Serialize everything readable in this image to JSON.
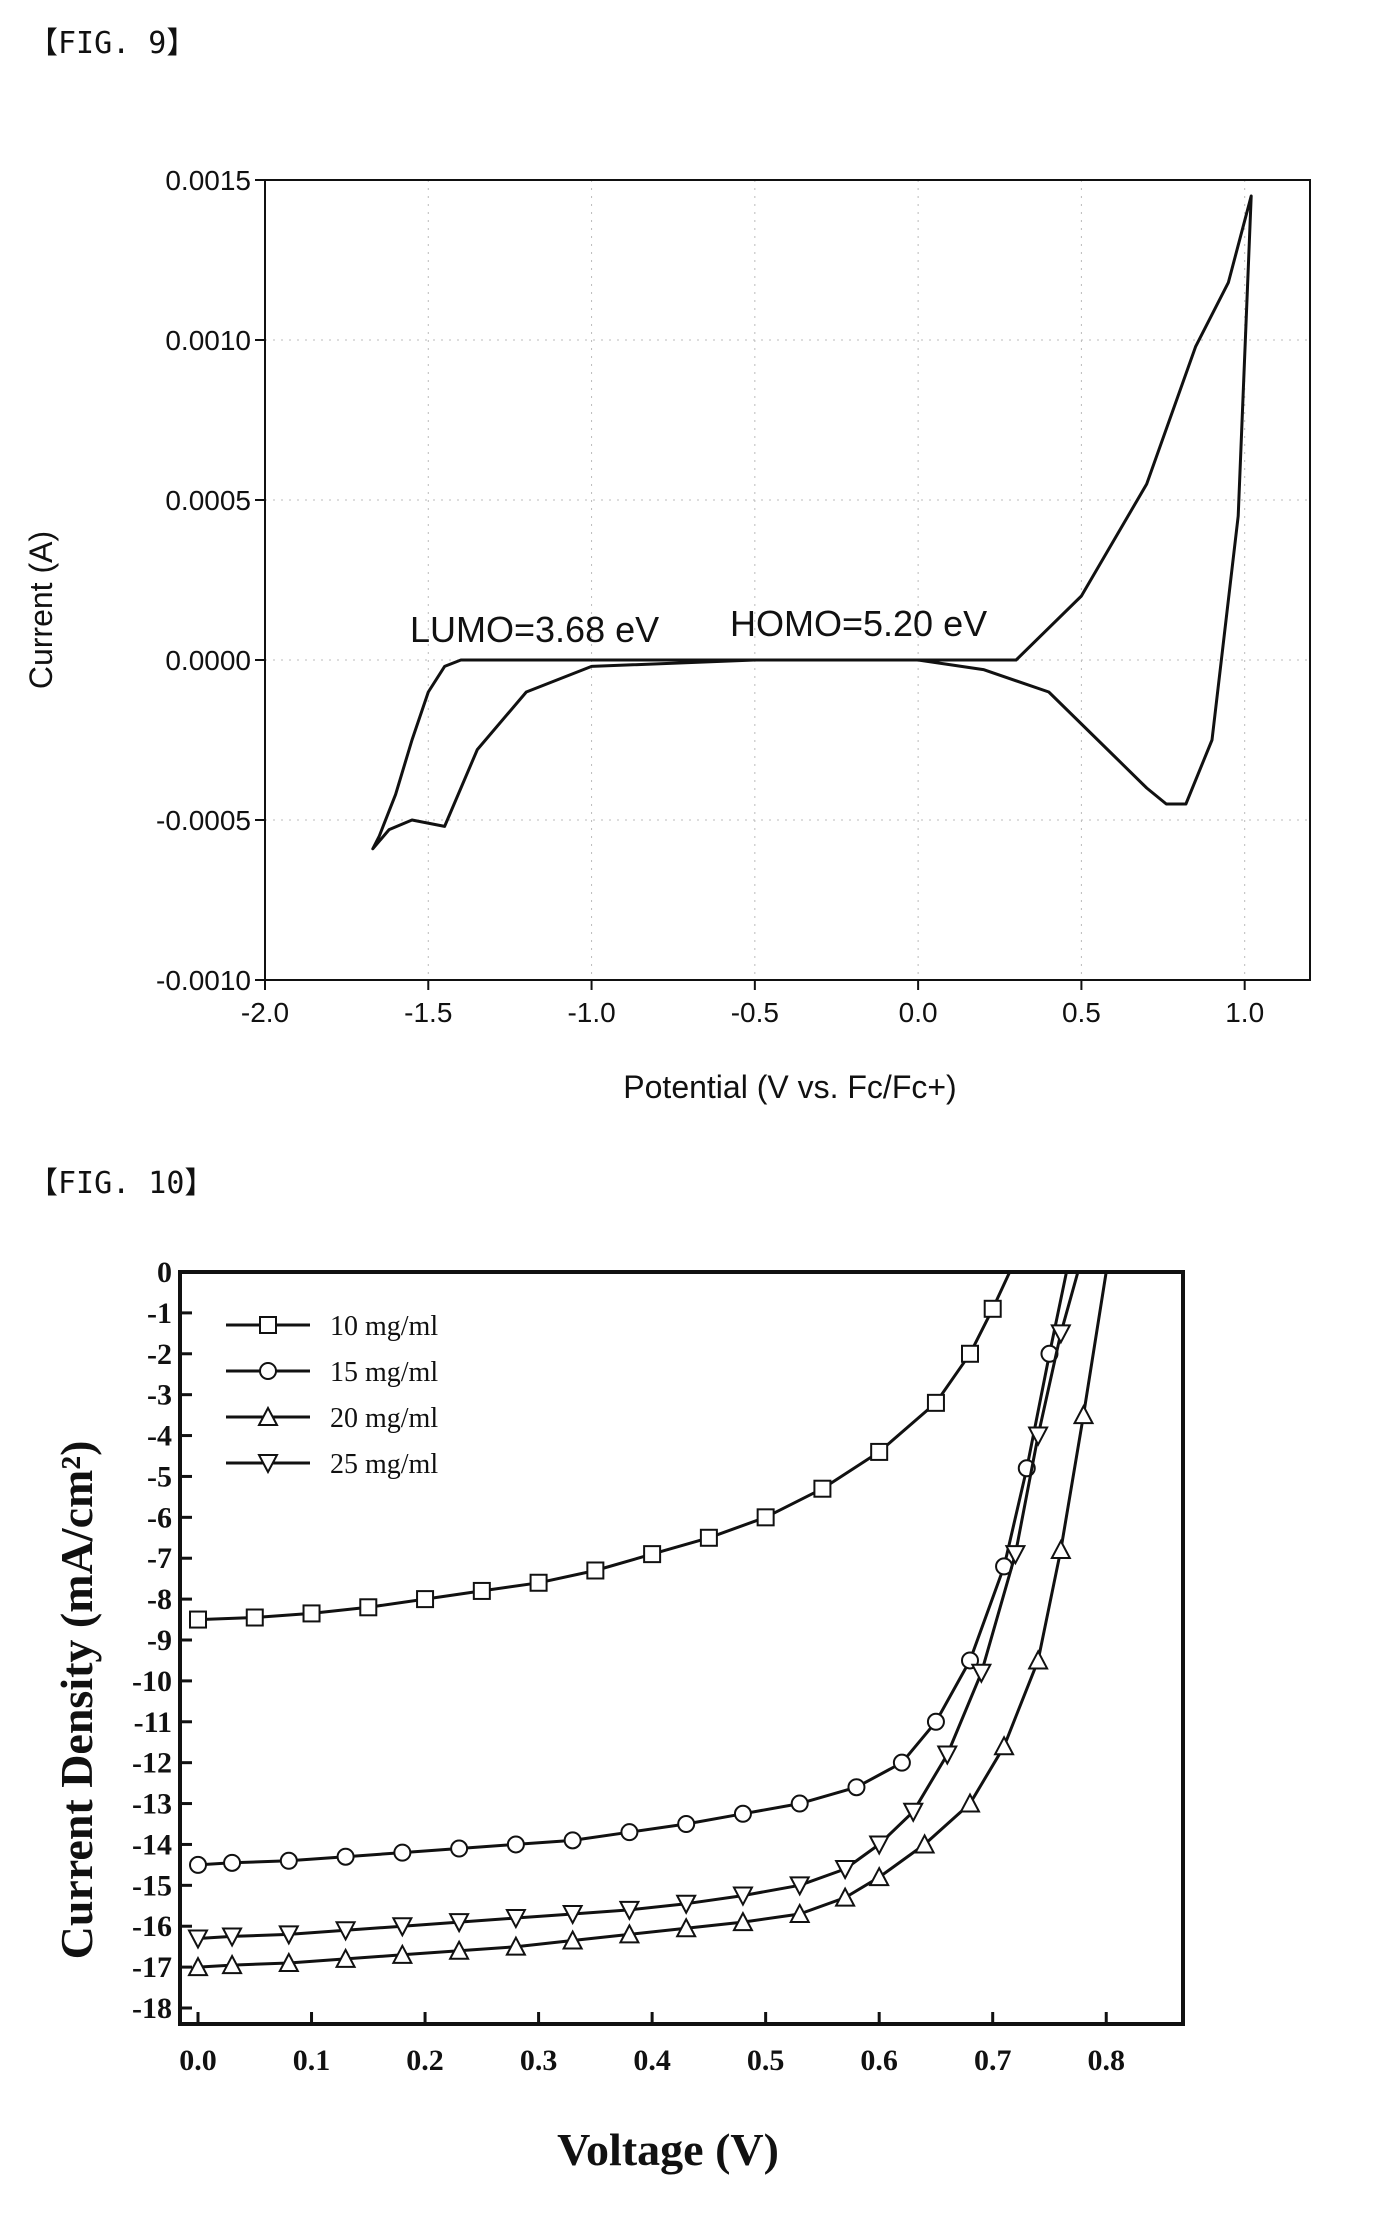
{
  "figures": {
    "fig9_label": "【FIG. 9】",
    "fig10_label": "【FIG. 10】"
  },
  "chart_data": [
    {
      "type": "line",
      "xlabel": "Potential (V vs. Fc/Fc+)",
      "ylabel": "Current (A)",
      "xlim": [
        -2.0,
        1.2
      ],
      "ylim": [
        -0.001,
        0.0015
      ],
      "xticks": [
        "-2.0",
        "-1.5",
        "-1.0",
        "-0.5",
        "0.0",
        "0.5",
        "1.0"
      ],
      "xtick_values": [
        -2.0,
        -1.5,
        -1.0,
        -0.5,
        0.0,
        0.5,
        1.0
      ],
      "yticks": [
        "0.0015",
        "0.0010",
        "0.0005",
        "0.0000",
        "-0.0005",
        "-0.0010"
      ],
      "ytick_values": [
        0.0015,
        0.001,
        0.0005,
        0.0,
        -0.0005,
        -0.001
      ],
      "grid": true,
      "annotations": [
        "LUMO=3.68 eV",
        "HOMO=5.20 eV"
      ],
      "series": [
        {
          "x": [
            -1.05,
            -1.2,
            -1.3,
            -1.4,
            -1.45,
            -1.5,
            -1.55,
            -1.6,
            -1.65,
            -1.67,
            -1.62,
            -1.55,
            -1.45,
            -1.35,
            -1.2,
            -1.0,
            -0.5,
            0.0,
            0.3,
            0.5,
            0.7,
            0.85,
            0.95,
            1.02,
            0.98,
            0.9,
            0.82,
            0.76,
            0.7,
            0.6,
            0.4,
            0.2,
            0.0,
            -0.5,
            -1.05
          ],
          "y": [
            0.0,
            0.0,
            0.0,
            0.0,
            -2e-05,
            -0.0001,
            -0.00025,
            -0.00042,
            -0.00055,
            -0.00059,
            -0.00053,
            -0.0005,
            -0.00052,
            -0.00028,
            -0.0001,
            -2e-05,
            0.0,
            0.0,
            0.0,
            0.0002,
            0.00055,
            0.00098,
            0.00118,
            0.00145,
            0.00045,
            -0.00025,
            -0.00045,
            -0.00045,
            -0.0004,
            -0.0003,
            -0.0001,
            -3e-05,
            0.0,
            0.0,
            0.0
          ]
        }
      ]
    },
    {
      "type": "line",
      "xlabel": "Voltage (V)",
      "ylabel": "Current Density (mA/cm²)",
      "xlim": [
        0.0,
        0.85
      ],
      "ylim": [
        -18,
        0
      ],
      "xticks": [
        "0.0",
        "0.1",
        "0.2",
        "0.3",
        "0.4",
        "0.5",
        "0.6",
        "0.7",
        "0.8"
      ],
      "xtick_values": [
        0.0,
        0.1,
        0.2,
        0.3,
        0.4,
        0.5,
        0.6,
        0.7,
        0.8
      ],
      "yticks": [
        "0",
        "-1",
        "-2",
        "-3",
        "-4",
        "-5",
        "-6",
        "-7",
        "-8",
        "-9",
        "-10",
        "-11",
        "-12",
        "-13",
        "-14",
        "-15",
        "-16",
        "-17",
        "-18"
      ],
      "ytick_values": [
        0,
        -1,
        -2,
        -3,
        -4,
        -5,
        -6,
        -7,
        -8,
        -9,
        -10,
        -11,
        -12,
        -13,
        -14,
        -15,
        -16,
        -17,
        -18
      ],
      "legend": "top-left",
      "series": [
        {
          "name": "10 mg/ml",
          "marker": "square",
          "x": [
            0.0,
            0.05,
            0.1,
            0.15,
            0.2,
            0.25,
            0.3,
            0.35,
            0.4,
            0.45,
            0.5,
            0.55,
            0.6,
            0.65,
            0.68,
            0.7,
            0.715
          ],
          "y": [
            -8.5,
            -8.45,
            -8.35,
            -8.2,
            -8.0,
            -7.8,
            -7.6,
            -7.3,
            -6.9,
            -6.5,
            -6.0,
            -5.3,
            -4.4,
            -3.2,
            -2.0,
            -0.9,
            0.0
          ]
        },
        {
          "name": "15 mg/ml",
          "marker": "circle",
          "x": [
            0.0,
            0.03,
            0.08,
            0.13,
            0.18,
            0.23,
            0.28,
            0.33,
            0.38,
            0.43,
            0.48,
            0.53,
            0.58,
            0.62,
            0.65,
            0.68,
            0.71,
            0.73,
            0.75,
            0.765
          ],
          "y": [
            -14.5,
            -14.45,
            -14.4,
            -14.3,
            -14.2,
            -14.1,
            -14.0,
            -13.9,
            -13.7,
            -13.5,
            -13.25,
            -13.0,
            -12.6,
            -12.0,
            -11.0,
            -9.5,
            -7.2,
            -4.8,
            -2.0,
            0.0
          ]
        },
        {
          "name": "20 mg/ml",
          "marker": "triangle-up",
          "x": [
            0.0,
            0.03,
            0.08,
            0.13,
            0.18,
            0.23,
            0.28,
            0.33,
            0.38,
            0.43,
            0.48,
            0.53,
            0.57,
            0.6,
            0.64,
            0.68,
            0.71,
            0.74,
            0.76,
            0.78,
            0.8
          ],
          "y": [
            -17.0,
            -16.95,
            -16.9,
            -16.8,
            -16.7,
            -16.6,
            -16.5,
            -16.35,
            -16.2,
            -16.05,
            -15.9,
            -15.7,
            -15.3,
            -14.8,
            -14.0,
            -13.0,
            -11.6,
            -9.5,
            -6.8,
            -3.5,
            0.0
          ]
        },
        {
          "name": "25 mg/ml",
          "marker": "triangle-down",
          "x": [
            0.0,
            0.03,
            0.08,
            0.13,
            0.18,
            0.23,
            0.28,
            0.33,
            0.38,
            0.43,
            0.48,
            0.53,
            0.57,
            0.6,
            0.63,
            0.66,
            0.69,
            0.72,
            0.74,
            0.76,
            0.775
          ],
          "y": [
            -16.3,
            -16.25,
            -16.2,
            -16.1,
            -16.0,
            -15.9,
            -15.8,
            -15.7,
            -15.6,
            -15.45,
            -15.25,
            -15.0,
            -14.6,
            -14.0,
            -13.2,
            -11.8,
            -9.8,
            -6.9,
            -4.0,
            -1.5,
            0.0
          ]
        }
      ]
    }
  ]
}
